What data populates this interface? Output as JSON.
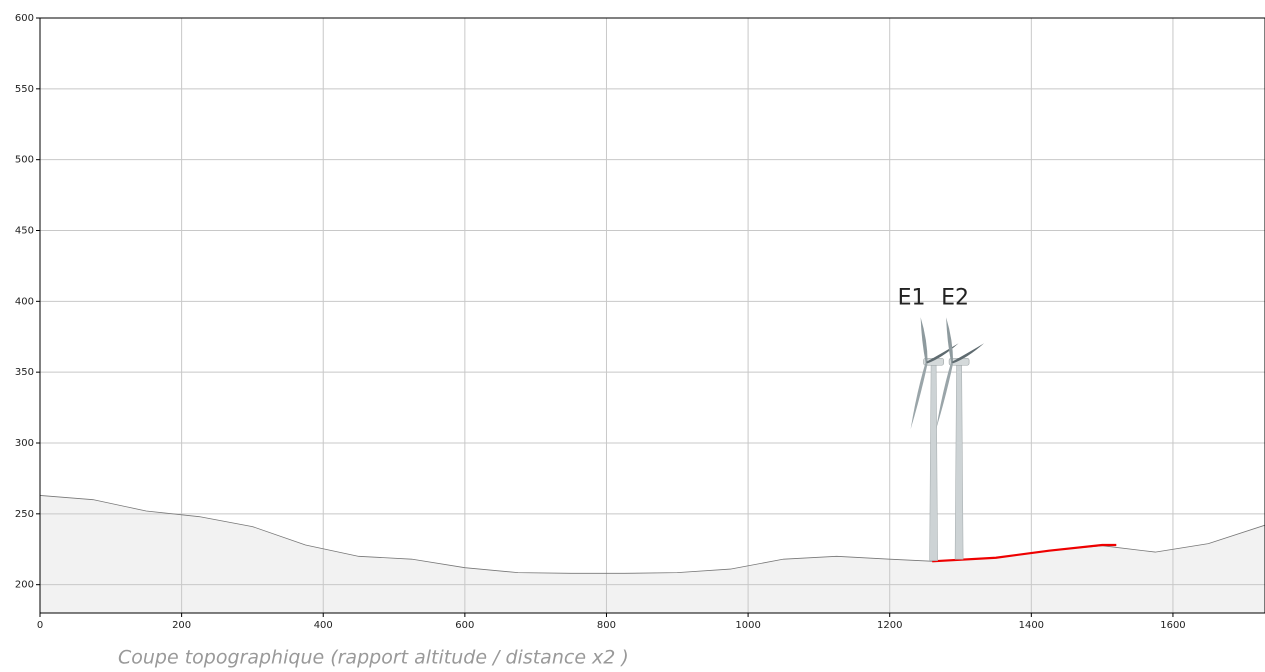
{
  "chart_data": {
    "type": "line",
    "caption": "Coupe topographique (rapport altitude / distance x2 )",
    "xlim": [
      0,
      1730
    ],
    "ylim": [
      180,
      600
    ],
    "xticks": [
      0,
      200,
      400,
      600,
      800,
      1000,
      1200,
      1400,
      1600
    ],
    "yticks": [
      200,
      250,
      300,
      350,
      400,
      450,
      500,
      550,
      600
    ],
    "grid": true,
    "series": [
      {
        "color": "#777777",
        "fill": "#f2f2f2",
        "x": [
          0,
          75,
          150,
          225,
          300,
          375,
          450,
          525,
          600,
          675,
          750,
          825,
          900,
          975,
          1050,
          1125,
          1200,
          1262,
          1350,
          1425,
          1500,
          1575,
          1650,
          1730
        ],
        "values": [
          263,
          260,
          252,
          248,
          241,
          228,
          220,
          218,
          212,
          208.5,
          208,
          208,
          208.5,
          211,
          218,
          220,
          218,
          216.5,
          219,
          224,
          227.5,
          223,
          229,
          242
        ]
      },
      {
        "color": "#ee0000",
        "x": [
          1260,
          1350,
          1425,
          1500,
          1520
        ],
        "values": [
          216.5,
          219,
          224,
          228,
          228
        ]
      }
    ],
    "turbines": [
      {
        "label": "E1",
        "x": 1262,
        "base": 217,
        "hub": 357
      },
      {
        "label": "E2",
        "x": 1298,
        "base": 218,
        "hub": 357
      }
    ]
  }
}
